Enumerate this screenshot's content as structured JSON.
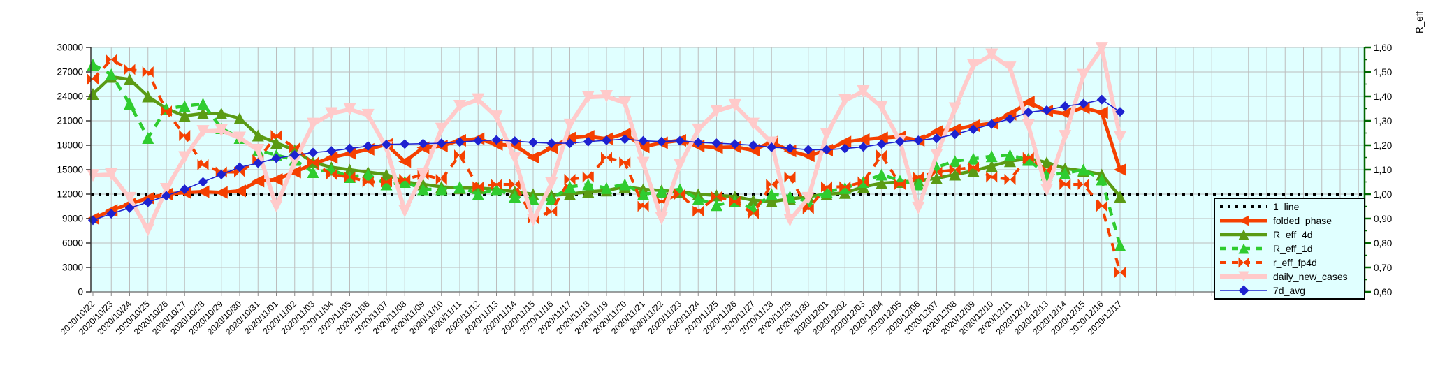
{
  "chart_data": {
    "type": "line",
    "title": "",
    "x_tick_label_format": "rotated-45",
    "x": [
      "2020/10/22",
      "2020/10/23",
      "2020/10/24",
      "2020/10/25",
      "2020/10/26",
      "2020/10/27",
      "2020/10/28",
      "2020/10/29",
      "2020/10/30",
      "2020/10/31",
      "2020/11/01",
      "2020/11/02",
      "2020/11/03",
      "2020/11/04",
      "2020/11/05",
      "2020/11/06",
      "2020/11/07",
      "2020/11/08",
      "2020/11/09",
      "2020/11/10",
      "2020/11/11",
      "2020/11/12",
      "2020/11/13",
      "2020/11/14",
      "2020/11/15",
      "2020/11/16",
      "2020/11/17",
      "2020/11/18",
      "2020/11/19",
      "2020/11/20",
      "2020/11/21",
      "2020/11/22",
      "2020/11/23",
      "2020/11/24",
      "2020/11/25",
      "2020/11/26",
      "2020/11/27",
      "2020/11/28",
      "2020/11/29",
      "2020/11/30",
      "2020/12/01",
      "2020/12/02",
      "2020/12/03",
      "2020/12/04",
      "2020/12/05",
      "2020/12/06",
      "2020/12/07",
      "2020/12/08",
      "2020/12/09",
      "2020/12/10",
      "2020/12/11",
      "2020/12/12",
      "2020/12/13",
      "2020/12/14",
      "2020/12/15",
      "2020/12/16",
      "2020/12/17"
    ],
    "left_axis": {
      "min": 0,
      "max": 30000,
      "step": 3000,
      "tick_labels": [
        "0",
        "3000",
        "6000",
        "9000",
        "12000",
        "15000",
        "18000",
        "21000",
        "24000",
        "27000",
        "30000"
      ],
      "color": "#333333"
    },
    "right_axis": {
      "label": "R_eff",
      "min": 0.6,
      "max": 1.6,
      "step": 0.1,
      "tick_labels": [
        "0,60",
        "0,70",
        "0,80",
        "0,90",
        "1,00",
        "1,10",
        "1,20",
        "1,30",
        "1,40",
        "1,50",
        "1,60"
      ],
      "color": "#006600"
    },
    "reference_line": {
      "name": "1_line",
      "axis": "right",
      "value": 1.0,
      "color": "#000000",
      "style": "dotted"
    },
    "series": [
      {
        "name": "folded_phase",
        "axis": "left",
        "color": "#F54000",
        "style": "solid",
        "marker": "triangle-left",
        "line_width": 5,
        "values": [
          9000,
          10000,
          10800,
          11500,
          12000,
          12200,
          12300,
          12200,
          12400,
          13600,
          13800,
          14700,
          15700,
          16500,
          17000,
          17500,
          18100,
          16000,
          17700,
          17900,
          18600,
          18800,
          18100,
          18000,
          16500,
          17700,
          18900,
          19100,
          18800,
          19400,
          17800,
          18300,
          18600,
          17900,
          17700,
          17800,
          17400,
          18400,
          17300,
          16700,
          17400,
          18400,
          18700,
          18900,
          19050,
          18600,
          19700,
          19950,
          20400,
          20700,
          21800,
          23300,
          22200,
          21900,
          22600,
          22000,
          15000
        ]
      },
      {
        "name": "R_eff_4d",
        "axis": "right",
        "color": "#5A9B14",
        "style": "solid",
        "marker": "triangle-up",
        "line_width": 4.5,
        "values": [
          1.41,
          1.48,
          1.47,
          1.4,
          1.35,
          1.32,
          1.33,
          1.33,
          1.31,
          1.24,
          1.21,
          1.18,
          1.13,
          1.11,
          1.1,
          1.09,
          1.08,
          1.05,
          1.04,
          1.03,
          1.025,
          1.025,
          1.02,
          1.01,
          1.0,
          0.995,
          1.0,
          1.01,
          1.015,
          1.03,
          1.02,
          1.015,
          1.01,
          1.0,
          0.995,
          0.99,
          0.975,
          0.97,
          0.98,
          0.99,
          1.0,
          1.005,
          1.03,
          1.045,
          1.05,
          1.055,
          1.065,
          1.08,
          1.095,
          1.115,
          1.135,
          1.145,
          1.13,
          1.105,
          1.095,
          1.08,
          0.99
        ]
      },
      {
        "name": "R_eff_1d",
        "axis": "right",
        "color": "#2FCC2F",
        "style": "dashed",
        "marker": "triangle-up",
        "line_width": 4.5,
        "values": [
          1.53,
          1.49,
          1.37,
          1.23,
          1.35,
          1.36,
          1.37,
          1.27,
          1.23,
          1.18,
          1.16,
          1.14,
          1.09,
          1.1,
          1.07,
          1.08,
          1.04,
          1.05,
          1.02,
          1.02,
          1.03,
          1.0,
          1.02,
          0.99,
          0.98,
          0.98,
          1.03,
          1.04,
          1.025,
          1.04,
          1.0,
          1.01,
          1.02,
          0.98,
          0.955,
          0.97,
          0.94,
          1.0,
          0.99,
          0.97,
          1.01,
          1.025,
          1.05,
          1.08,
          1.055,
          1.04,
          1.11,
          1.135,
          1.145,
          1.155,
          1.16,
          1.14,
          1.08,
          1.085,
          1.1,
          1.06,
          0.79
        ]
      },
      {
        "name": "r_eff_fp4d",
        "axis": "right",
        "color": "#F54000",
        "style": "dashed",
        "marker": "bowtie",
        "line_width": 4,
        "values": [
          1.47,
          1.55,
          1.51,
          1.5,
          1.34,
          1.24,
          1.12,
          1.09,
          1.09,
          1.14,
          1.24,
          1.19,
          1.13,
          1.08,
          1.07,
          1.05,
          1.05,
          1.06,
          1.08,
          1.06,
          1.16,
          1.03,
          1.04,
          1.04,
          0.9,
          0.93,
          1.06,
          1.07,
          1.15,
          1.13,
          0.95,
          0.97,
          1.0,
          0.93,
          0.99,
          0.97,
          0.92,
          1.04,
          1.07,
          0.94,
          1.03,
          1.03,
          1.05,
          1.16,
          1.04,
          1.07,
          1.09,
          1.1,
          1.11,
          1.07,
          1.06,
          1.15,
          1.1,
          1.04,
          1.04,
          0.95,
          0.68
        ]
      },
      {
        "name": "daily_new_cases",
        "axis": "left",
        "color": "#FFCACA",
        "style": "solid",
        "marker": "triangle-down",
        "line_width": 6,
        "values": [
          14300,
          14400,
          11500,
          7600,
          12600,
          16500,
          19700,
          19800,
          18900,
          17400,
          10500,
          16000,
          20600,
          21900,
          22400,
          21700,
          17700,
          9900,
          14400,
          20000,
          22800,
          23600,
          21500,
          16400,
          8800,
          13300,
          20500,
          23900,
          24000,
          23200,
          15800,
          9000,
          15600,
          19900,
          22200,
          22900,
          20600,
          18300,
          8800,
          11500,
          19300,
          23500,
          24600,
          22700,
          18500,
          10300,
          16800,
          22500,
          27800,
          29100,
          27500,
          20400,
          12500,
          19100,
          26600,
          29900,
          19000
        ]
      },
      {
        "name": "7d_avg",
        "axis": "left",
        "color": "#1E22D0",
        "style": "solid",
        "marker": "diamond",
        "line_width": 1.6,
        "values": [
          8800,
          9600,
          10300,
          11000,
          11800,
          12600,
          13500,
          14400,
          15300,
          15800,
          16400,
          16800,
          17100,
          17300,
          17600,
          17900,
          18100,
          18150,
          18200,
          18250,
          18400,
          18550,
          18650,
          18500,
          18350,
          18250,
          18250,
          18450,
          18600,
          18750,
          18550,
          18450,
          18550,
          18350,
          18250,
          18150,
          18000,
          17750,
          17650,
          17450,
          17450,
          17600,
          17800,
          18150,
          18450,
          18600,
          18850,
          19350,
          19950,
          20600,
          21250,
          22050,
          22300,
          22800,
          23100,
          23600,
          22100
        ]
      }
    ],
    "legend": {
      "position": "bottom-right",
      "entries": [
        "1_line",
        "folded_phase",
        "R_eff_4d",
        "R_eff_1d",
        "r_eff_fp4d",
        "daily_new_cases",
        "7d_avg"
      ]
    },
    "plot": {
      "background": "#E0FFFF",
      "grid_color": "#BDBDBD",
      "grid": true,
      "extra_day_columns_after_last_date": 13
    }
  }
}
